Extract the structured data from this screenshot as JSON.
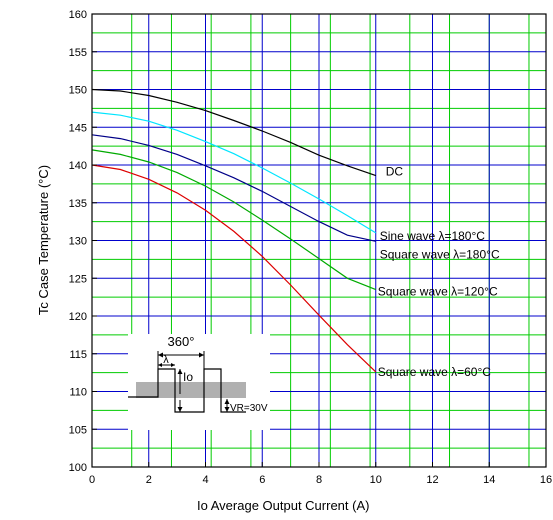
{
  "chart_data": {
    "type": "line",
    "title": "",
    "xlabel": "Io     Average Output Current     (A)",
    "ylabel": "Tc     Case Temperature     (°C)",
    "xlim": [
      0,
      16
    ],
    "ylim": [
      100,
      160
    ],
    "x_ticks": [
      "0",
      "2",
      "4",
      "6",
      "8",
      "10",
      "12",
      "14",
      "16"
    ],
    "y_ticks": [
      "100",
      "105",
      "110",
      "115",
      "120",
      "125",
      "130",
      "135",
      "140",
      "145",
      "150",
      "155",
      "160"
    ],
    "grid": true,
    "grid_minor_x_step": 1.4,
    "grid_minor_y_step": 2.5,
    "colors": {
      "grid_major": "#0000cc",
      "grid_minor": "#00cc00",
      "axis": "#000000"
    },
    "series": [
      {
        "name": "DC",
        "color": "#000000",
        "x": [
          0,
          1,
          2,
          3,
          4,
          5,
          6,
          7,
          8,
          9,
          10
        ],
        "y": [
          150,
          149.8,
          149.2,
          148.3,
          147.2,
          145.9,
          144.5,
          143.0,
          141.3,
          139.9,
          138.6
        ]
      },
      {
        "name": "Sine wave λ=180°C",
        "color": "#00e5ff",
        "x": [
          0,
          1,
          2,
          3,
          4,
          5,
          6,
          7,
          8,
          9,
          10
        ],
        "y": [
          147,
          146.6,
          145.8,
          144.6,
          143.1,
          141.5,
          139.6,
          137.6,
          135.5,
          133.3,
          131.0
        ]
      },
      {
        "name": "Square wave λ=180°C",
        "color": "#000088",
        "x": [
          0,
          1,
          2,
          3,
          4,
          5,
          6,
          7,
          8,
          9,
          10
        ],
        "y": [
          144,
          143.5,
          142.6,
          141.4,
          139.9,
          138.3,
          136.5,
          134.5,
          132.5,
          130.7,
          129.9
        ]
      },
      {
        "name": "Square wave λ=120°C",
        "color": "#00aa00",
        "x": [
          0,
          1,
          2,
          3,
          4,
          5,
          6,
          7,
          8,
          9,
          10
        ],
        "y": [
          142,
          141.4,
          140.4,
          139.0,
          137.2,
          135.1,
          132.7,
          130.2,
          127.6,
          125.0,
          123.5
        ]
      },
      {
        "name": "Square wave λ=60°C",
        "color": "#dd0000",
        "x": [
          0,
          1,
          2,
          3,
          4,
          5,
          6,
          7,
          8,
          9,
          10
        ],
        "y": [
          140,
          139.4,
          138.1,
          136.3,
          134.0,
          131.2,
          127.9,
          124.1,
          120.1,
          116.2,
          112.6
        ]
      }
    ],
    "annotations": [
      {
        "text": "DC",
        "series": 0
      },
      {
        "text": "Sine wave λ=180°C",
        "series": 1
      },
      {
        "text": "Square wave λ=180°C",
        "series": 2
      },
      {
        "text": "Square wave λ=120°C",
        "series": 3
      },
      {
        "text": "Square wave λ=60°C",
        "series": 4
      }
    ],
    "inset": {
      "label_period": "360°",
      "label_lambda": "λ",
      "label_io": "Io",
      "label_vr": "VR=30V"
    }
  }
}
